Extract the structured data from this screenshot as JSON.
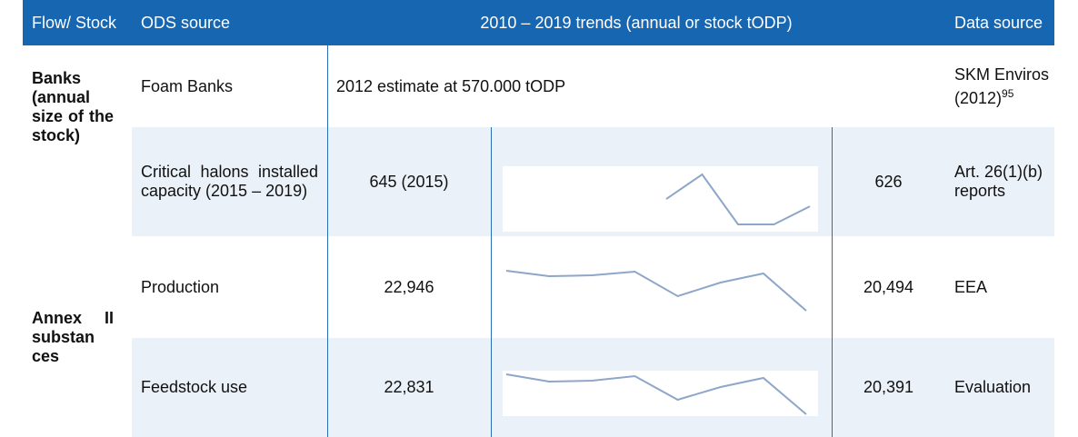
{
  "header": [
    "Flow/ Stock",
    "ODS source",
    "2010 – 2019 trends (annual or stock tODP)",
    "Data source"
  ],
  "groups": [
    "Banks (annual size of the stock)",
    "Annex II substan ces"
  ],
  "rows": [
    {
      "source": "Foam Banks",
      "trend": "2012 estimate at 570.000 tODP",
      "data_source": "SKM Enviros (2012)",
      "footnote": "95"
    },
    {
      "source": "Critical halons installed capacity (2015 – 2019)",
      "first": "645 (2015)",
      "sparkline": [
        645,
        709,
        579,
        579,
        626
      ],
      "last": "626",
      "data_source": "Art. 26(1)(b) reports"
    },
    {
      "source": "Production",
      "first": "22,946",
      "sparkline": [
        22946,
        22612,
        22668,
        22891,
        21387,
        22222,
        22779,
        20494
      ],
      "last": "20,494",
      "data_source": "EEA"
    },
    {
      "source": "Feedstock use",
      "first": "22,831",
      "sparkline": [
        22831,
        22387,
        22443,
        22720,
        21278,
        22054,
        22609,
        20391
      ],
      "last": "20,391",
      "data_source": "Evaluation"
    }
  ]
}
